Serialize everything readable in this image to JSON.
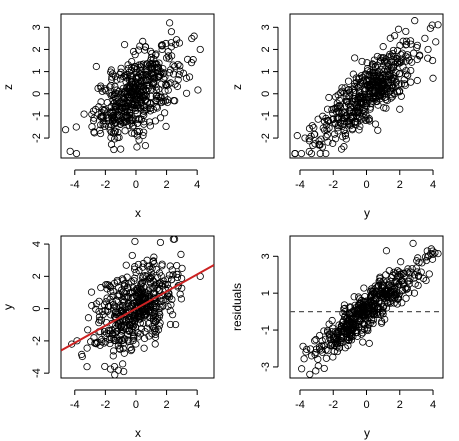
{
  "figure": {
    "panels": [
      {
        "id": "p1",
        "xlabel": "x",
        "ylabel": "z"
      },
      {
        "id": "p2",
        "xlabel": "y",
        "ylabel": "z"
      },
      {
        "id": "p3",
        "xlabel": "x",
        "ylabel": "y"
      },
      {
        "id": "p4",
        "xlabel": "y",
        "ylabel": "residuals"
      }
    ]
  },
  "chart_data": [
    {
      "type": "scatter",
      "title": "",
      "xlabel": "x",
      "ylabel": "z",
      "xlim": [
        -4.9,
        5.1
      ],
      "ylim": [
        -2.9,
        3.6
      ],
      "xticks": [
        "-4",
        "-2",
        "0",
        "2",
        "4"
      ],
      "yticks": [
        "-2",
        "-1",
        "0",
        "1",
        "2",
        "3"
      ],
      "point_style": "open-circle",
      "n_points": 500,
      "trend": {
        "slope": 0.42,
        "intercept": 0.0,
        "scatter_sd": 0.85
      },
      "x_distribution": {
        "mean": 0,
        "sd": 1.35
      },
      "sample_points": [
        [
          -4.3,
          -2.6
        ],
        [
          -3.9,
          -1.5
        ],
        [
          3.8,
          2.6
        ],
        [
          3.3,
          0.7
        ],
        [
          2.2,
          3.2
        ],
        [
          4.2,
          2.0
        ],
        [
          -1.0,
          -2.5
        ]
      ]
    },
    {
      "type": "scatter",
      "title": "",
      "xlabel": "y",
      "ylabel": "z",
      "xlim": [
        -4.6,
        4.6
      ],
      "ylim": [
        -2.9,
        3.6
      ],
      "xticks": [
        "-4",
        "-2",
        "0",
        "2",
        "4"
      ],
      "yticks": [
        "-2",
        "-1",
        "0",
        "1",
        "2",
        "3"
      ],
      "point_style": "open-circle",
      "n_points": 500,
      "trend": {
        "slope": 0.6,
        "intercept": 0.0,
        "scatter_sd": 0.65
      },
      "x_distribution": {
        "mean": 0,
        "sd": 1.55
      },
      "sample_points": [
        [
          -3.7,
          -2.0
        ],
        [
          -1.5,
          -2.5
        ],
        [
          2.9,
          3.3
        ],
        [
          3.7,
          2.0
        ],
        [
          4.0,
          0.7
        ],
        [
          2.0,
          -0.7
        ]
      ]
    },
    {
      "type": "scatter",
      "title": "",
      "xlabel": "x",
      "ylabel": "y",
      "xlim": [
        -4.9,
        5.1
      ],
      "ylim": [
        -4.3,
        4.5
      ],
      "xticks": [
        "-4",
        "-2",
        "0",
        "2",
        "4"
      ],
      "yticks": [
        "-4",
        "-2",
        "0",
        "2",
        "4"
      ],
      "point_style": "open-circle",
      "n_points": 500,
      "trend": {
        "slope": 0.53,
        "intercept": 0.0,
        "scatter_sd": 1.3
      },
      "x_distribution": {
        "mean": 0,
        "sd": 1.35
      },
      "regression_line": {
        "slope": 0.53,
        "intercept": 0.0,
        "color": "#cc2222"
      },
      "sample_points": [
        [
          -4.2,
          -2.2
        ],
        [
          -3.2,
          -3.6
        ],
        [
          -0.8,
          -3.9
        ],
        [
          1.6,
          4.1
        ],
        [
          4.2,
          2.0
        ],
        [
          -2.3,
          1.3
        ]
      ]
    },
    {
      "type": "scatter",
      "title": "",
      "xlabel": "y",
      "ylabel": "residuals",
      "xlim": [
        -4.6,
        4.6
      ],
      "ylim": [
        -3.6,
        4.1
      ],
      "xticks": [
        "-4",
        "-2",
        "0",
        "2",
        "4"
      ],
      "yticks": [
        "-3",
        "-1",
        "1",
        "3"
      ],
      "point_style": "open-circle",
      "n_points": 500,
      "trend": {
        "slope": 0.72,
        "intercept": 0.0,
        "scatter_sd": 0.55
      },
      "x_distribution": {
        "mean": 0,
        "sd": 1.55
      },
      "reference_line": {
        "y": 0,
        "style": "dashed",
        "color": "#555555"
      },
      "sample_points": [
        [
          -3.9,
          -3.1
        ],
        [
          -3.3,
          -2.4
        ],
        [
          3.9,
          3.4
        ],
        [
          2.8,
          3.7
        ],
        [
          4.0,
          3.1
        ],
        [
          1.2,
          3.3
        ]
      ]
    }
  ]
}
